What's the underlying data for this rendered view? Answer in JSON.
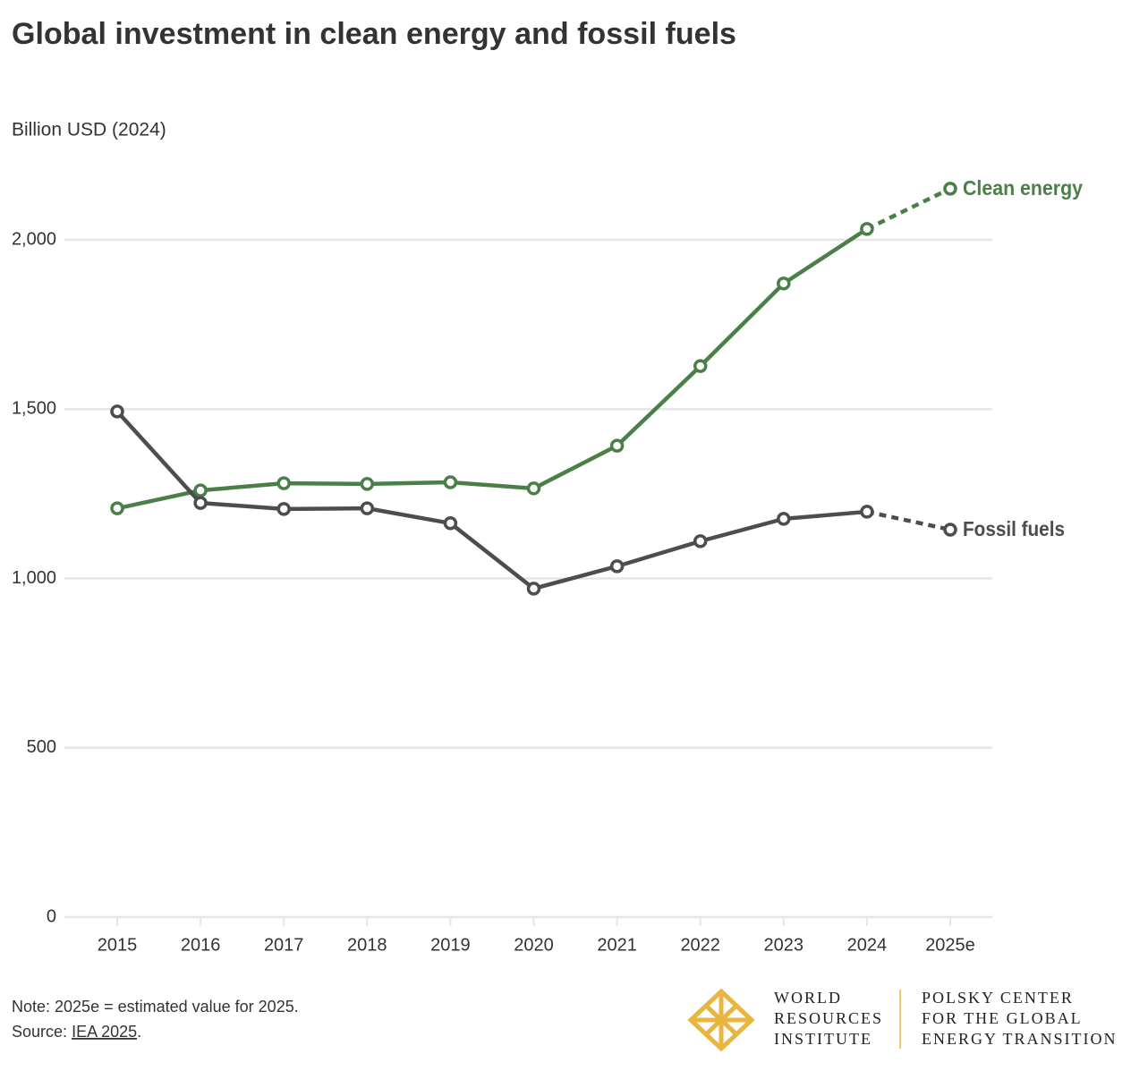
{
  "chart_data": {
    "type": "line",
    "title": "Global investment in clean energy and fossil fuels",
    "y_axis_label": "Billion USD (2024)",
    "categories": [
      "2015",
      "2016",
      "2017",
      "2018",
      "2019",
      "2020",
      "2021",
      "2022",
      "2023",
      "2024",
      "2025e"
    ],
    "series": [
      {
        "name": "Clean energy",
        "color": "#4a7f48",
        "values": [
          1207,
          1260,
          1281,
          1279,
          1284,
          1266,
          1392,
          1627,
          1871,
          2032,
          2151
        ]
      },
      {
        "name": "Fossil fuels",
        "color": "#4d4d4d",
        "values": [
          1493,
          1223,
          1205,
          1207,
          1163,
          970,
          1036,
          1110,
          1176,
          1197,
          1144
        ]
      }
    ],
    "ylim": [
      0,
      2200
    ],
    "yticks": [
      0,
      500,
      {
        "value": 1000,
        "label": "1,000"
      },
      {
        "value": 1500,
        "label": "1,500"
      },
      {
        "value": 2000,
        "label": "2,000"
      }
    ],
    "grid": true,
    "legend": "line-end",
    "dash_last_segment": true,
    "note": "Note: 2025e = estimated value for 2025.",
    "source": {
      "label": "Source:",
      "link": "IEA 2025",
      "end": "."
    },
    "logo": {
      "left": [
        "WORLD",
        "RESOURCES",
        "INSTITUTE"
      ],
      "right": [
        "POLSKY CENTER",
        "FOR THE GLOBAL",
        "ENERGY TRANSITION"
      ]
    }
  }
}
